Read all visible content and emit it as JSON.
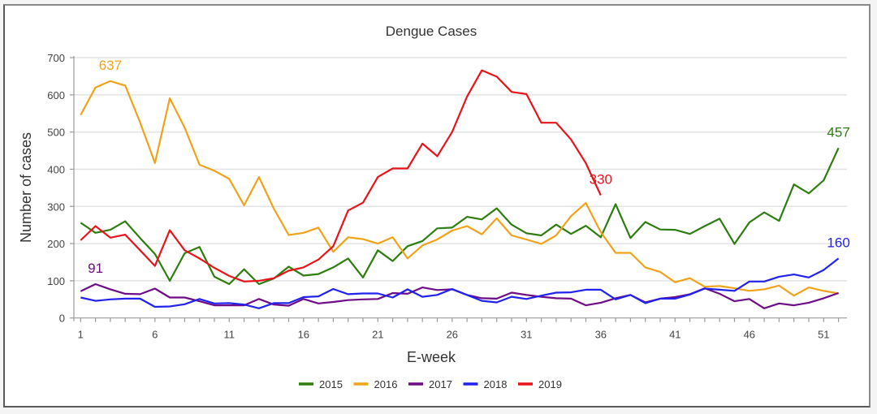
{
  "chart_data": {
    "type": "line",
    "title": "Dengue Cases",
    "xlabel": "E-week",
    "ylabel": "Number of cases",
    "ylim": [
      0,
      700
    ],
    "yticks": [
      0,
      100,
      200,
      300,
      400,
      500,
      600,
      700
    ],
    "xlim": [
      1,
      52
    ],
    "xticks": [
      1,
      6,
      11,
      16,
      21,
      26,
      31,
      36,
      41,
      46,
      51
    ],
    "grid": true,
    "legend_position": "bottom",
    "series": [
      {
        "name": "2015",
        "color": "#2e7d0f",
        "values": [
          256,
          229,
          237,
          260,
          215,
          172,
          100,
          174,
          191,
          111,
          91,
          131,
          91,
          106,
          138,
          114,
          118,
          136,
          160,
          109,
          182,
          153,
          193,
          207,
          241,
          243,
          272,
          265,
          295,
          251,
          228,
          222,
          251,
          226,
          248,
          217,
          306,
          215,
          258,
          238,
          237,
          226,
          247,
          267,
          199,
          257,
          284,
          261,
          359,
          335,
          370,
          457
        ]
      },
      {
        "name": "2016",
        "color": "#f0a31a",
        "values": [
          546,
          620,
          637,
          625,
          526,
          417,
          591,
          512,
          412,
          396,
          374,
          303,
          379,
          294,
          223,
          229,
          243,
          178,
          217,
          212,
          200,
          217,
          160,
          195,
          211,
          235,
          247,
          225,
          268,
          222,
          211,
          199,
          222,
          274,
          309,
          231,
          175,
          175,
          136,
          124,
          96,
          107,
          84,
          86,
          80,
          73,
          77,
          87,
          60,
          82,
          73,
          66
        ]
      },
      {
        "name": "2017",
        "color": "#6f0c87",
        "values": [
          72,
          91,
          77,
          65,
          64,
          79,
          55,
          55,
          45,
          34,
          34,
          34,
          51,
          36,
          33,
          51,
          39,
          43,
          48,
          50,
          51,
          67,
          65,
          82,
          75,
          77,
          62,
          53,
          52,
          68,
          62,
          57,
          53,
          52,
          34,
          41,
          53,
          62,
          42,
          52,
          56,
          64,
          80,
          65,
          45,
          51,
          26,
          39,
          34,
          41,
          53,
          67
        ]
      },
      {
        "name": "2018",
        "color": "#2222ee",
        "values": [
          55,
          46,
          50,
          52,
          52,
          30,
          31,
          37,
          51,
          39,
          40,
          36,
          26,
          40,
          40,
          56,
          58,
          78,
          64,
          66,
          66,
          55,
          77,
          57,
          62,
          78,
          62,
          46,
          42,
          57,
          51,
          60,
          68,
          69,
          76,
          76,
          50,
          62,
          40,
          52,
          52,
          63,
          79,
          76,
          73,
          98,
          98,
          111,
          117,
          109,
          129,
          160
        ]
      },
      {
        "name": "2019",
        "color": "#e8141c",
        "values": [
          209,
          247,
          216,
          224,
          182,
          140,
          236,
          182,
          160,
          135,
          113,
          98,
          100,
          107,
          127,
          136,
          157,
          193,
          289,
          310,
          379,
          402,
          402,
          469,
          435,
          500,
          595,
          666,
          649,
          608,
          602,
          525,
          525,
          480,
          416,
          330
        ]
      }
    ],
    "annotations": [
      {
        "series": "2016",
        "week": 3,
        "text": "637"
      },
      {
        "series": "2017",
        "week": 2,
        "text": "91"
      },
      {
        "series": "2019",
        "week": 36,
        "text": "330"
      },
      {
        "series": "2015",
        "week": 52,
        "text": "457"
      },
      {
        "series": "2018",
        "week": 52,
        "text": "160"
      }
    ]
  }
}
